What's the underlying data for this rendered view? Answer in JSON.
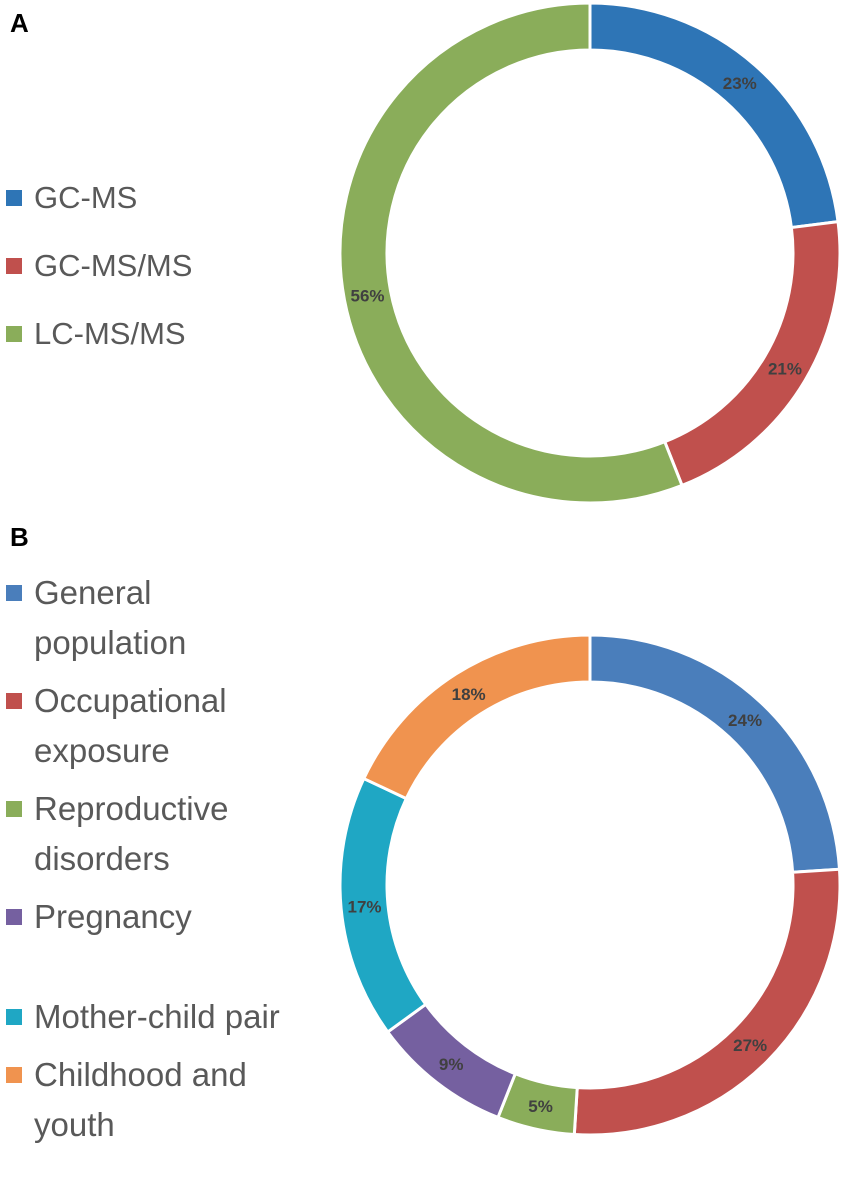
{
  "chart_data": [
    {
      "type": "pie",
      "panel": "A",
      "donut": true,
      "legend_position": "left",
      "categories": [
        "GC-MS",
        "GC-MS/MS",
        "LC-MS/MS"
      ],
      "values": [
        23,
        21,
        56
      ],
      "labels": [
        "23%",
        "21%",
        "56%"
      ],
      "colors": [
        "#2e75b6",
        "#c0504d",
        "#8aad5a"
      ]
    },
    {
      "type": "pie",
      "panel": "B",
      "donut": true,
      "legend_position": "left",
      "categories": [
        "General population",
        "Occupational exposure",
        "Reproductive disorders",
        "Pregnancy",
        "Mother-child pair",
        "Childhood and youth"
      ],
      "values": [
        24,
        27,
        5,
        9,
        17,
        18
      ],
      "labels": [
        "24%",
        "27%",
        "5%",
        "9%",
        "17%",
        "18%"
      ],
      "colors": [
        "#4a7ebb",
        "#c0504d",
        "#8aad5a",
        "#7560a0",
        "#1fa7c4",
        "#f0934f"
      ]
    }
  ]
}
